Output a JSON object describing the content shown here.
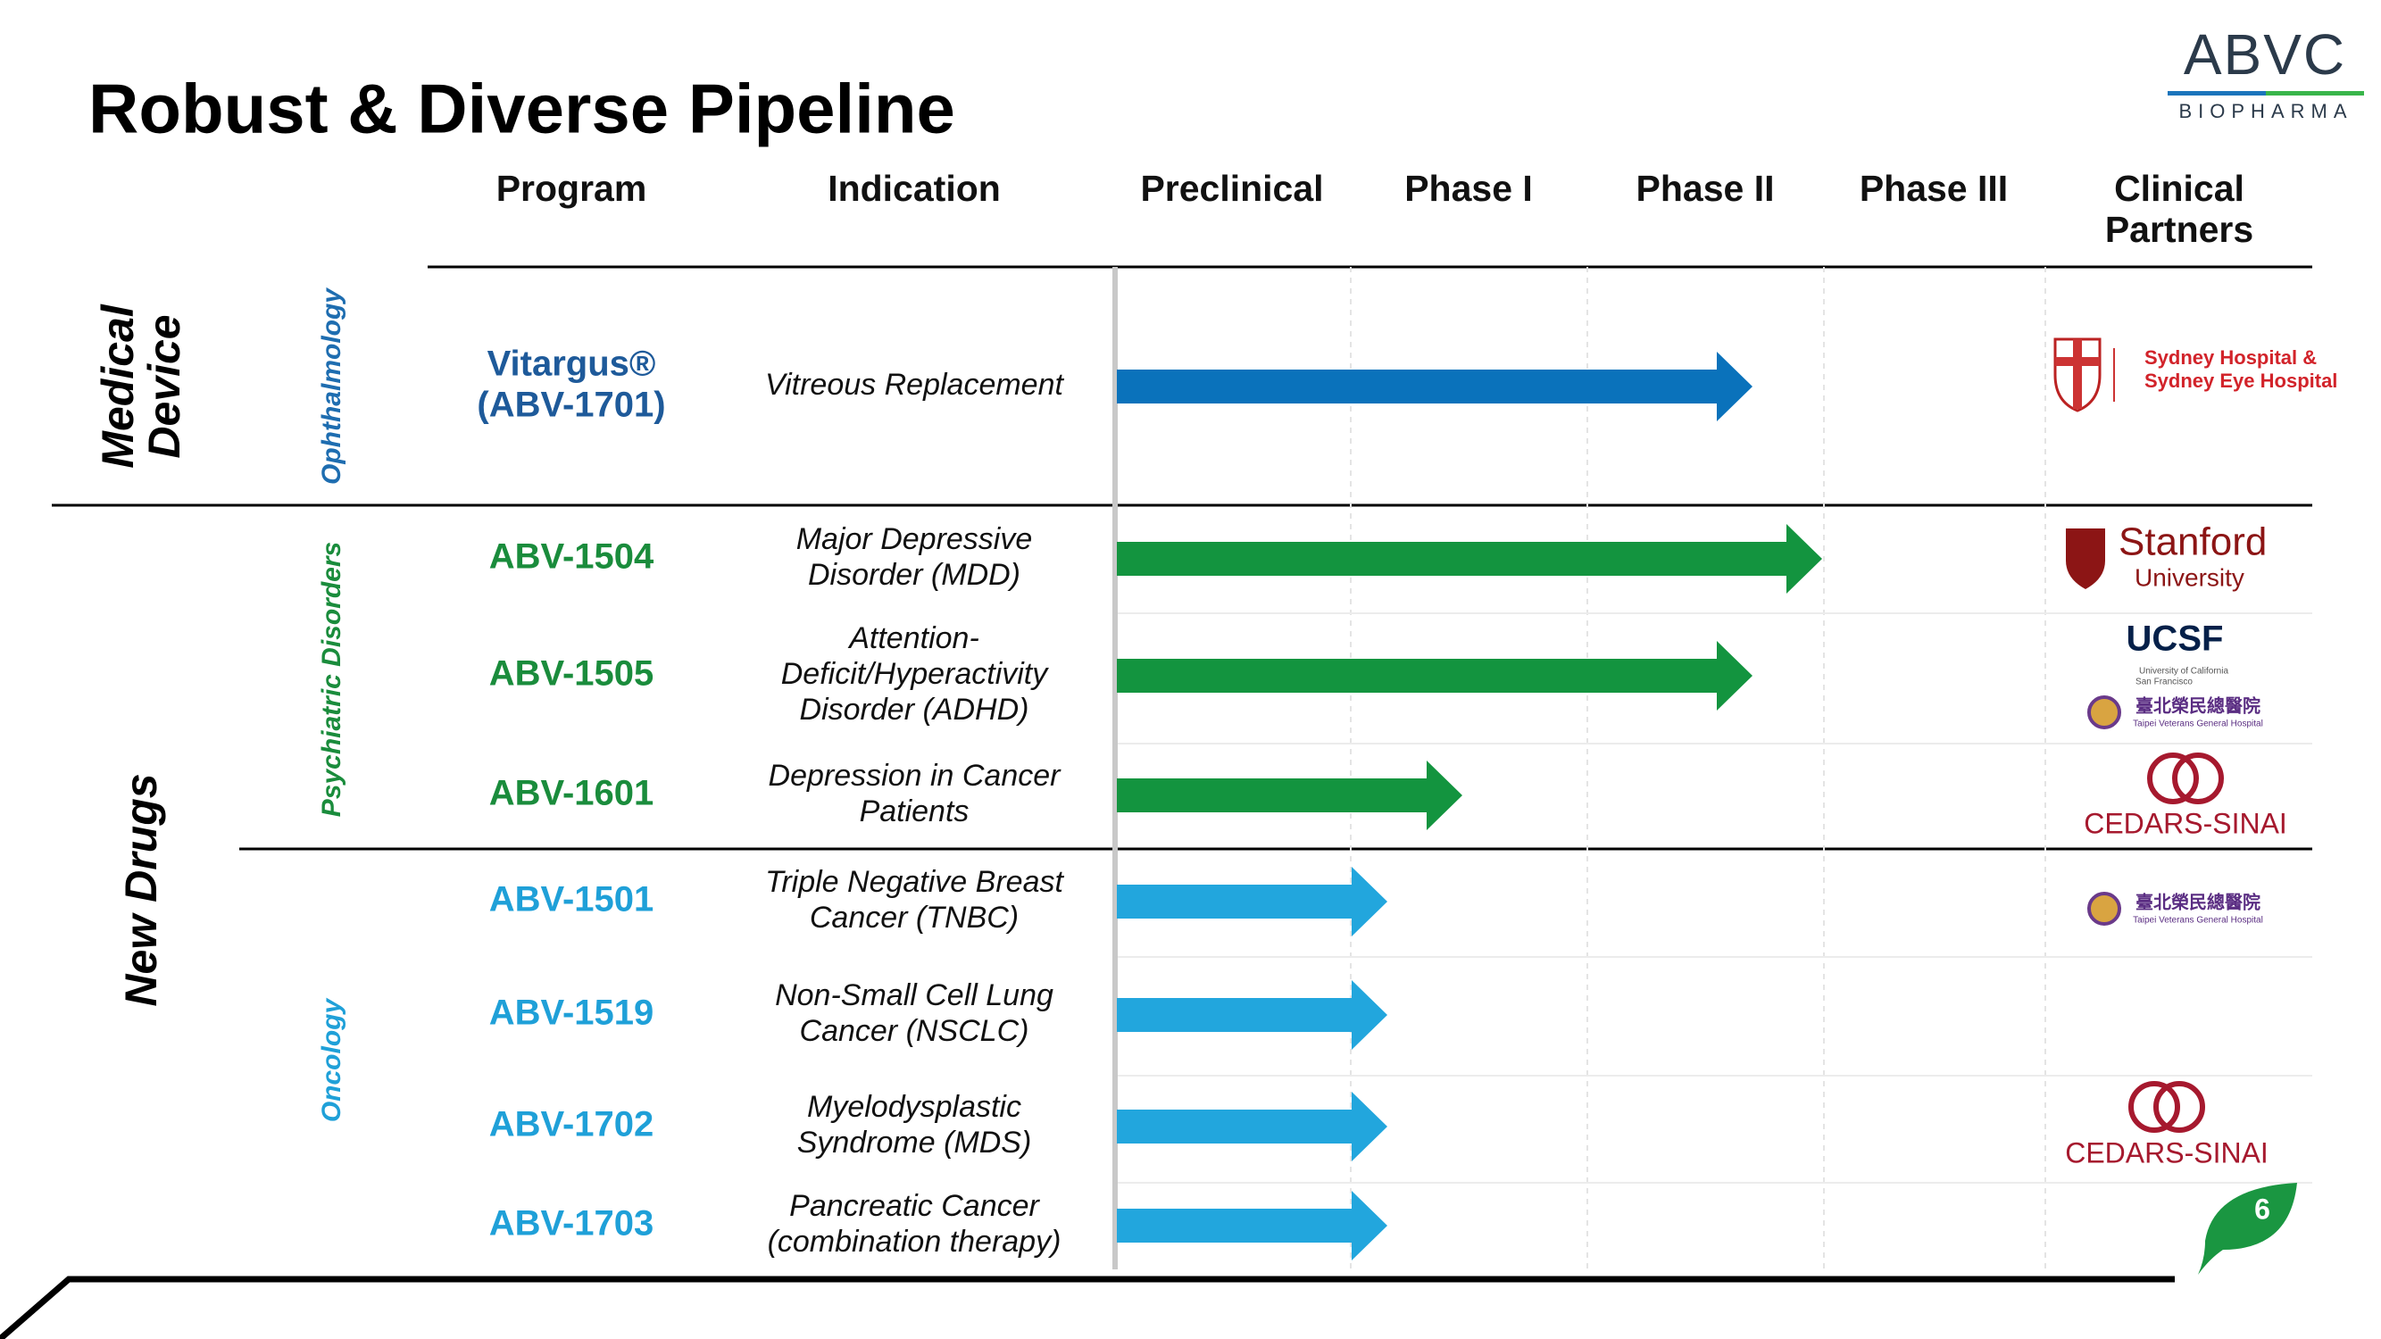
{
  "header": {
    "title": "Robust & Diverse Pipeline",
    "logo": {
      "name": "ABVC",
      "tagline": "BIOPHARMA"
    }
  },
  "columns": [
    [
      "Program"
    ],
    [
      "Indication"
    ],
    [
      "Preclinical"
    ],
    [
      "Phase I"
    ],
    [
      "Phase II"
    ],
    [
      "Phase III"
    ],
    [
      "Clinical",
      "Partners"
    ]
  ],
  "groups": [
    [
      "Medical",
      "Device"
    ],
    [
      "New Drugs"
    ]
  ],
  "categories": [
    "Ophthalmology",
    "Psychiatric Disorders",
    "Oncology"
  ],
  "rows": [
    {
      "program": [
        "Vitargus®",
        "(ABV-1701)"
      ],
      "indication": [
        "Vitreous Replacement"
      ]
    },
    {
      "program": [
        "ABV-1504"
      ],
      "indication": [
        "Major Depressive",
        "Disorder (MDD)"
      ]
    },
    {
      "program": [
        "ABV-1505"
      ],
      "indication": [
        "Attention-",
        "Deficit/Hyperactivity",
        "Disorder (ADHD)"
      ]
    },
    {
      "program": [
        "ABV-1601"
      ],
      "indication": [
        "Depression in Cancer",
        "Patients"
      ]
    },
    {
      "program": [
        "ABV-1501"
      ],
      "indication": [
        "Triple Negative Breast",
        "Cancer (TNBC)"
      ]
    },
    {
      "program": [
        "ABV-1519"
      ],
      "indication": [
        "Non-Small Cell Lung",
        "Cancer (NSCLC)"
      ]
    },
    {
      "program": [
        "ABV-1702"
      ],
      "indication": [
        "Myelodysplastic",
        "Syndrome (MDS)"
      ]
    },
    {
      "program": [
        "ABV-1703"
      ],
      "indication": [
        "Pancreatic Cancer",
        "(combination therapy)"
      ]
    }
  ],
  "partners": [
    [
      "Sydney Hospital &",
      "Sydney Eye Hospital"
    ],
    [
      "Stanford",
      "University"
    ],
    [
      "UCSF",
      "University of California",
      "San Francisco"
    ],
    [
      "臺北榮民總醫院",
      "Taipei Veterans General Hospital"
    ],
    [
      "CEDARS-SINAI"
    ],
    [
      "臺北榮民總醫院",
      "Taipei Veterans General Hospital"
    ],
    [
      "CEDARS-SINAI"
    ]
  ],
  "page_number": "6"
}
